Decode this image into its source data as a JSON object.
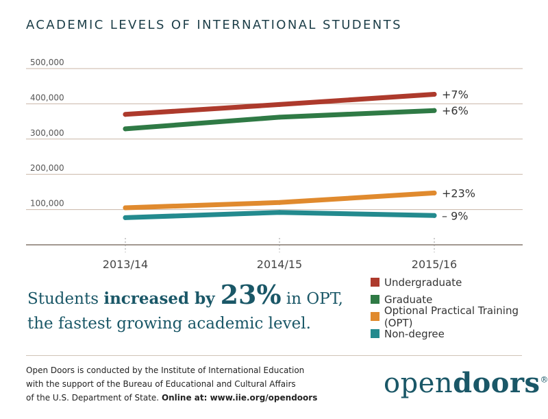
{
  "header": {
    "title": "ACADEMIC LEVELS OF INTERNATIONAL STUDENTS"
  },
  "chart_data": {
    "type": "line",
    "title": "ACADEMIC LEVELS OF INTERNATIONAL STUDENTS",
    "xlabel": "",
    "ylabel": "",
    "categories": [
      "2013/14",
      "2014/15",
      "2015/16"
    ],
    "ylim": [
      0,
      500000
    ],
    "yticks": [
      100000,
      200000,
      300000,
      400000,
      500000
    ],
    "ytick_labels": [
      "100,000",
      "200,000",
      "300,000",
      "400,000",
      "500,000"
    ],
    "grid": true,
    "legend_position": "bottom-right",
    "series": [
      {
        "name": "Undergraduate",
        "values": [
          370000,
          398000,
          427000
        ],
        "color": "#ad3a2c",
        "change_label": "+7%"
      },
      {
        "name": "Graduate",
        "values": [
          329000,
          362000,
          381000
        ],
        "color": "#2f7a45",
        "change_label": "+6%"
      },
      {
        "name": "Optional Practical Training (OPT)",
        "values": [
          105000,
          120000,
          147000
        ],
        "color": "#e08a2e",
        "change_label": "+23%"
      },
      {
        "name": "Non-degree",
        "values": [
          77000,
          92000,
          83000
        ],
        "color": "#238a8e",
        "change_label": "– 9%"
      }
    ]
  },
  "headline": {
    "pre": "Students ",
    "strong": "increased by ",
    "big": "23%",
    "post": " in OPT,",
    "line2": "the fastest growing academic level."
  },
  "footer": {
    "line1": "Open Doors is conducted by the Institute of International Education",
    "line2": "with the support of the Bureau of Educational and Cultural Affairs",
    "line3_pre": "of the U.S. Department of State. ",
    "line3_url": "Online at: www.iie.org/opendoors"
  },
  "logo": {
    "part1": "open",
    "part2": "doors",
    "mark": "®"
  }
}
